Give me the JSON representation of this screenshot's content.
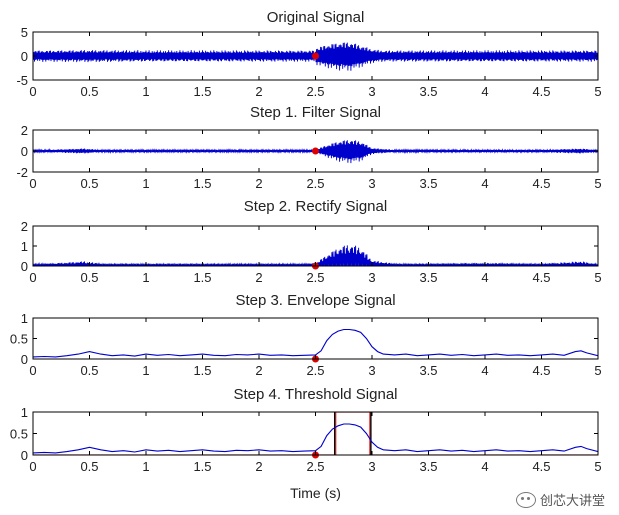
{
  "chart_data": [
    {
      "type": "line",
      "title": "Original Signal",
      "ylim": [
        -5,
        5
      ],
      "yticks": [
        5,
        0,
        -5
      ],
      "xlim": [
        0,
        5
      ],
      "xticks": [
        0,
        0.5,
        1,
        1.5,
        2,
        2.5,
        3,
        3.5,
        4,
        4.5,
        5
      ],
      "kind": "oscillating",
      "envelope": {
        "x": [
          0,
          0.5,
          1,
          1.5,
          2,
          2.5,
          2.5,
          2.6,
          2.7,
          2.8,
          2.9,
          3.0,
          3.1,
          3.5,
          4,
          4.5,
          5
        ],
        "amp": [
          1.2,
          1.3,
          1.2,
          1.2,
          1.2,
          1.2,
          1.8,
          2.5,
          3.0,
          3.2,
          2.4,
          1.5,
          1.2,
          1.2,
          1.2,
          1.2,
          1.2
        ]
      },
      "marker": {
        "x": 2.5,
        "y": 0
      },
      "series_color": "#0000cc",
      "marker_color": "#dd0000"
    },
    {
      "type": "line",
      "title": "Step 1. Filter Signal",
      "ylim": [
        -2,
        2
      ],
      "yticks": [
        2,
        0,
        -2
      ],
      "xlim": [
        0,
        5
      ],
      "xticks": [
        0,
        0.5,
        1,
        1.5,
        2,
        2.5,
        3,
        3.5,
        4,
        4.5,
        5
      ],
      "kind": "oscillating",
      "envelope": {
        "x": [
          0,
          0.2,
          0.45,
          0.6,
          1.0,
          1.5,
          2.0,
          2.4,
          2.5,
          2.6,
          2.7,
          2.8,
          2.9,
          3.0,
          3.2,
          3.5,
          4.0,
          4.5,
          4.85,
          5
        ],
        "amp": [
          0.1,
          0.15,
          0.25,
          0.12,
          0.12,
          0.12,
          0.12,
          0.12,
          0.15,
          0.6,
          1.0,
          1.2,
          1.0,
          0.3,
          0.12,
          0.12,
          0.15,
          0.12,
          0.25,
          0.1
        ]
      },
      "marker": {
        "x": 2.5,
        "y": 0
      },
      "series_color": "#0000cc",
      "marker_color": "#dd0000"
    },
    {
      "type": "line",
      "title": "Step 2. Rectify Signal",
      "ylim": [
        0,
        2
      ],
      "yticks": [
        2,
        1,
        0
      ],
      "xlim": [
        0,
        5
      ],
      "xticks": [
        0,
        0.5,
        1,
        1.5,
        2,
        2.5,
        3,
        3.5,
        4,
        4.5,
        5
      ],
      "kind": "rectified",
      "envelope": {
        "x": [
          0,
          0.2,
          0.45,
          0.6,
          1.0,
          1.5,
          2.0,
          2.4,
          2.5,
          2.6,
          2.7,
          2.8,
          2.9,
          3.0,
          3.2,
          3.5,
          4.0,
          4.5,
          4.85,
          5
        ],
        "amp": [
          0.1,
          0.15,
          0.25,
          0.12,
          0.12,
          0.12,
          0.12,
          0.12,
          0.15,
          0.6,
          1.0,
          1.2,
          1.0,
          0.3,
          0.12,
          0.12,
          0.15,
          0.12,
          0.25,
          0.1
        ]
      },
      "marker": {
        "x": 2.5,
        "y": 0
      },
      "series_color": "#0000cc",
      "marker_color": "#dd0000"
    },
    {
      "type": "line",
      "title": "Step 3. Envelope Signal",
      "ylim": [
        0,
        1
      ],
      "yticks": [
        1,
        0.5,
        0
      ],
      "xlim": [
        0,
        5
      ],
      "xticks": [
        0,
        0.5,
        1,
        1.5,
        2,
        2.5,
        3,
        3.5,
        4,
        4.5,
        5
      ],
      "kind": "smooth",
      "x": [
        0,
        0.1,
        0.2,
        0.3,
        0.4,
        0.5,
        0.6,
        0.7,
        0.8,
        0.9,
        1.0,
        1.1,
        1.2,
        1.3,
        1.4,
        1.5,
        1.6,
        1.7,
        1.8,
        1.9,
        2.0,
        2.1,
        2.2,
        2.3,
        2.4,
        2.5,
        2.55,
        2.6,
        2.65,
        2.7,
        2.75,
        2.8,
        2.85,
        2.9,
        2.95,
        3.0,
        3.05,
        3.1,
        3.2,
        3.3,
        3.4,
        3.5,
        3.6,
        3.7,
        3.8,
        3.9,
        4.0,
        4.1,
        4.2,
        4.3,
        4.4,
        4.5,
        4.6,
        4.7,
        4.8,
        4.85,
        4.9,
        5.0
      ],
      "y": [
        0.05,
        0.06,
        0.05,
        0.08,
        0.12,
        0.18,
        0.12,
        0.08,
        0.1,
        0.07,
        0.12,
        0.09,
        0.11,
        0.08,
        0.1,
        0.12,
        0.09,
        0.08,
        0.11,
        0.1,
        0.12,
        0.09,
        0.1,
        0.08,
        0.09,
        0.1,
        0.2,
        0.45,
        0.6,
        0.68,
        0.72,
        0.72,
        0.7,
        0.65,
        0.5,
        0.3,
        0.18,
        0.12,
        0.1,
        0.12,
        0.08,
        0.1,
        0.12,
        0.09,
        0.11,
        0.08,
        0.1,
        0.12,
        0.09,
        0.1,
        0.08,
        0.1,
        0.12,
        0.09,
        0.18,
        0.2,
        0.15,
        0.08
      ],
      "marker": {
        "x": 2.5,
        "y": 0
      },
      "series_color": "#0000cc",
      "marker_color": "#dd0000"
    },
    {
      "type": "line",
      "title": "Step 4. Threshold Signal",
      "xlabel": "Time (s)",
      "ylim": [
        0,
        1
      ],
      "yticks": [
        1,
        0.5,
        0
      ],
      "xlim": [
        0,
        5
      ],
      "xticks": [
        0,
        0.5,
        1,
        1.5,
        2,
        2.5,
        3,
        3.5,
        4,
        4.5,
        5
      ],
      "kind": "smooth",
      "x": [
        0,
        0.1,
        0.2,
        0.3,
        0.4,
        0.5,
        0.6,
        0.7,
        0.8,
        0.9,
        1.0,
        1.1,
        1.2,
        1.3,
        1.4,
        1.5,
        1.6,
        1.7,
        1.8,
        1.9,
        2.0,
        2.1,
        2.2,
        2.3,
        2.4,
        2.5,
        2.55,
        2.6,
        2.65,
        2.7,
        2.75,
        2.8,
        2.85,
        2.9,
        2.95,
        3.0,
        3.05,
        3.1,
        3.2,
        3.3,
        3.4,
        3.5,
        3.6,
        3.7,
        3.8,
        3.9,
        4.0,
        4.1,
        4.2,
        4.3,
        4.4,
        4.5,
        4.6,
        4.7,
        4.8,
        4.85,
        4.9,
        5.0
      ],
      "y": [
        0.05,
        0.06,
        0.05,
        0.08,
        0.12,
        0.18,
        0.12,
        0.08,
        0.1,
        0.07,
        0.12,
        0.09,
        0.11,
        0.08,
        0.1,
        0.12,
        0.09,
        0.08,
        0.11,
        0.1,
        0.12,
        0.09,
        0.1,
        0.08,
        0.09,
        0.1,
        0.2,
        0.45,
        0.6,
        0.68,
        0.72,
        0.72,
        0.7,
        0.65,
        0.5,
        0.3,
        0.18,
        0.12,
        0.1,
        0.12,
        0.08,
        0.1,
        0.12,
        0.09,
        0.11,
        0.08,
        0.1,
        0.12,
        0.09,
        0.1,
        0.08,
        0.1,
        0.12,
        0.09,
        0.18,
        0.2,
        0.15,
        0.08
      ],
      "threshold": {
        "x_on": 2.68,
        "x_off": 2.98,
        "level": 1.0,
        "color": "#ff4040"
      },
      "black_lines_x": [
        2.67,
        2.99
      ],
      "marker": {
        "x": 2.5,
        "y": 0
      },
      "series_color": "#0000cc",
      "marker_color": "#dd0000"
    }
  ],
  "watermark": {
    "text": "创芯大讲堂"
  }
}
